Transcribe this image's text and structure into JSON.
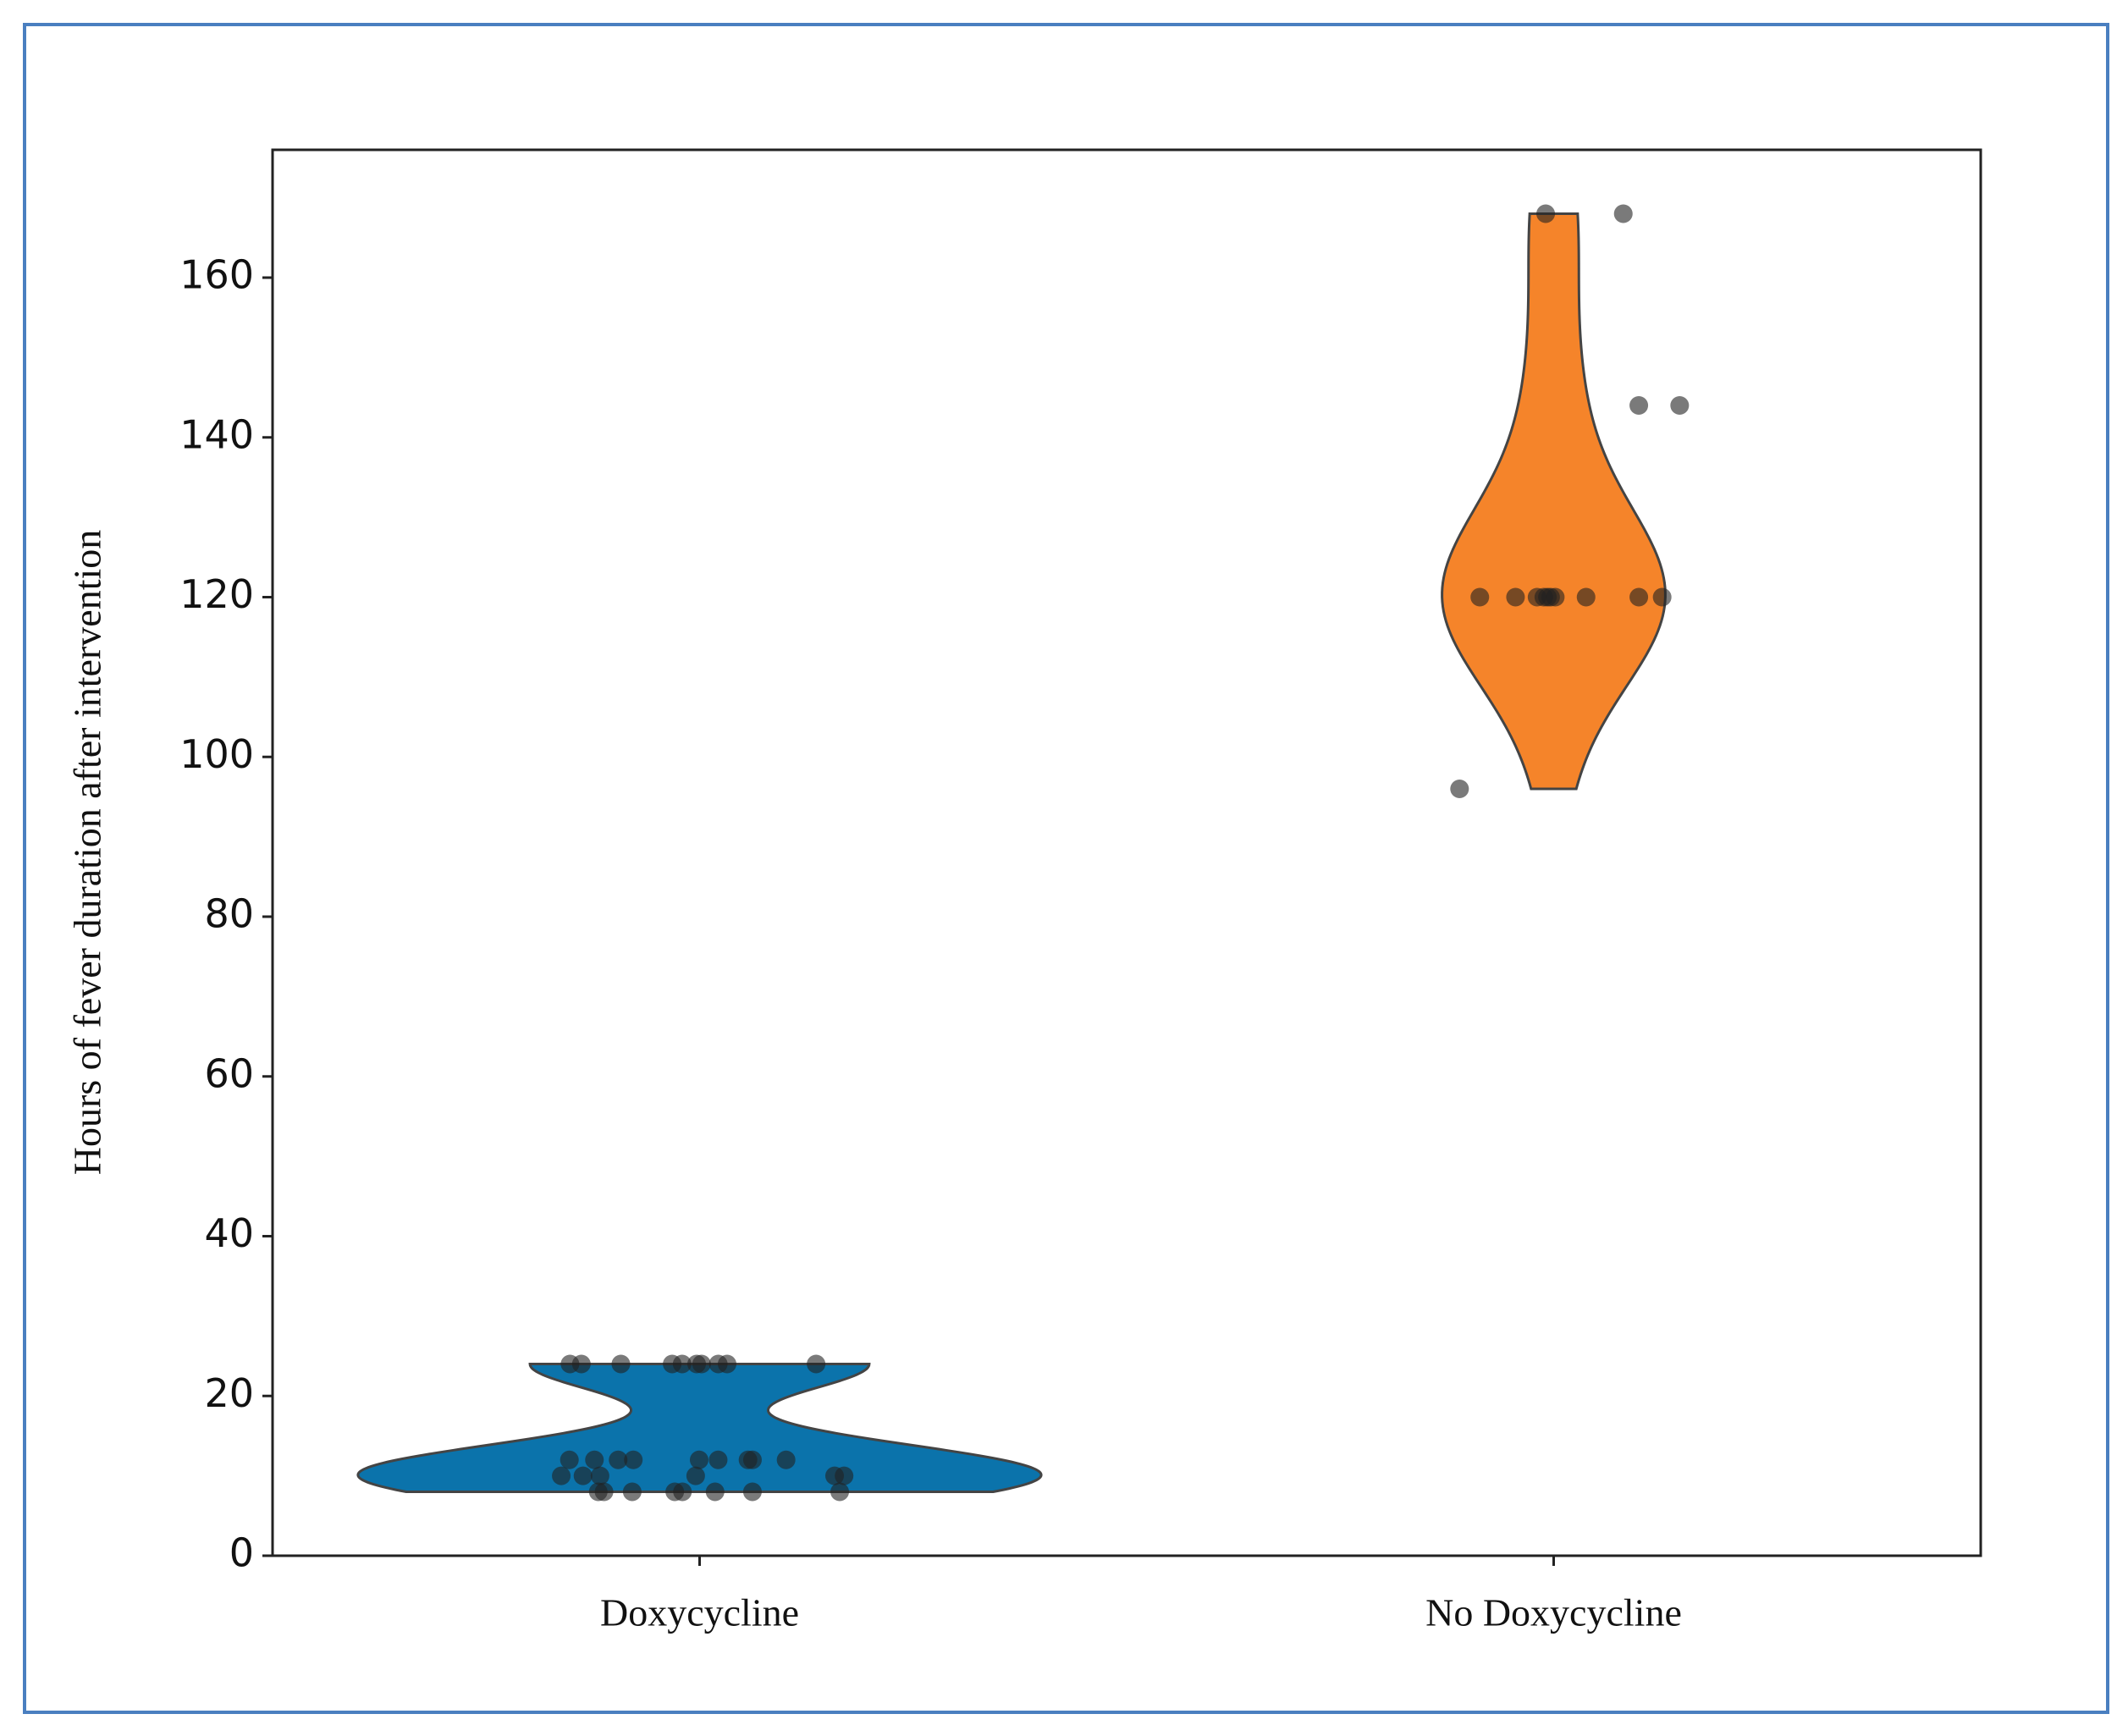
{
  "chart_data": {
    "type": "violin",
    "y_label": "Hours of fever duration after intervention",
    "categories": [
      "Doxycycline",
      "No Doxycycline"
    ],
    "colors": [
      "#0b73ab",
      "#f5842a"
    ],
    "values": [
      [
        24,
        24,
        24,
        24,
        24,
        24,
        24,
        24,
        24,
        24,
        12,
        12,
        12,
        12,
        12,
        12,
        12,
        12,
        12,
        10,
        10,
        10,
        10,
        10,
        10,
        8,
        8,
        8,
        8,
        8,
        8,
        8,
        8
      ],
      [
        168,
        168,
        144,
        144,
        120,
        120,
        120,
        120,
        120,
        120,
        120,
        120,
        120,
        120,
        96
      ]
    ],
    "ylim": [
      0,
      176
    ],
    "yticks": [
      0,
      20,
      40,
      60,
      80,
      100,
      120,
      140,
      160
    ]
  }
}
